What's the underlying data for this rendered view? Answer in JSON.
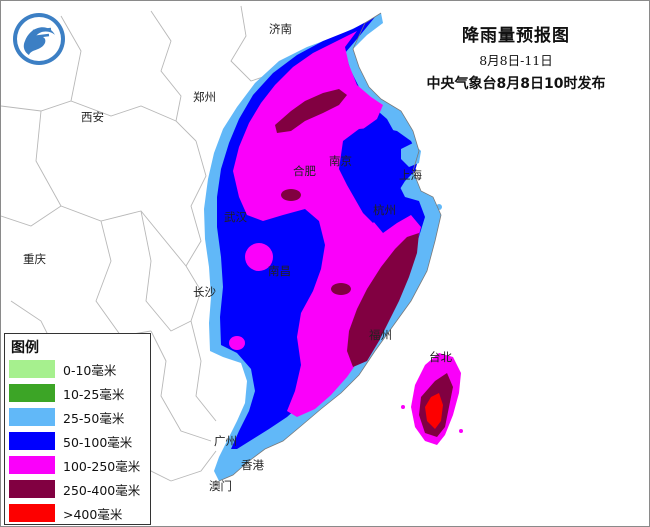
{
  "title": {
    "main": "降雨量预报图",
    "date_range": "8月8日-11日",
    "issuer": "中央气象台8月8日10时发布"
  },
  "cities": [
    {
      "id": "jinan",
      "name": "济南"
    },
    {
      "id": "zhengzhou",
      "name": "郑州"
    },
    {
      "id": "xian",
      "name": "西安"
    },
    {
      "id": "hefei",
      "name": "合肥"
    },
    {
      "id": "nanjing",
      "name": "南京"
    },
    {
      "id": "shanghai",
      "name": "上海"
    },
    {
      "id": "wuhan",
      "name": "武汉"
    },
    {
      "id": "hangzhou",
      "name": "杭州"
    },
    {
      "id": "chongqing",
      "name": "重庆"
    },
    {
      "id": "nanchang",
      "name": "南昌"
    },
    {
      "id": "changsha",
      "name": "长沙"
    },
    {
      "id": "fuzhou",
      "name": "福州"
    },
    {
      "id": "taibei",
      "name": "台北"
    },
    {
      "id": "guangzhou",
      "name": "广州"
    },
    {
      "id": "xianggang",
      "name": "香港"
    },
    {
      "id": "aomen",
      "name": "澳门"
    }
  ],
  "legend": {
    "title": "图例",
    "items": [
      {
        "label": "0-10毫米",
        "color": "#a6f08e"
      },
      {
        "label": "10-25毫米",
        "color": "#3ca526"
      },
      {
        "label": "25-50毫米",
        "color": "#61b8f8"
      },
      {
        "label": "50-100毫米",
        "color": "#0000fe"
      },
      {
        "label": "100-250毫米",
        "color": "#fa00fa"
      },
      {
        "label": "250-400毫米",
        "color": "#810041"
      },
      {
        "label": ">400毫米",
        "color": "#fd0000"
      }
    ]
  },
  "colors": {
    "land": "#ffffff",
    "sea": "#ffffff",
    "province_border": "#b8b8b8",
    "coast": "#7a7a7a"
  }
}
